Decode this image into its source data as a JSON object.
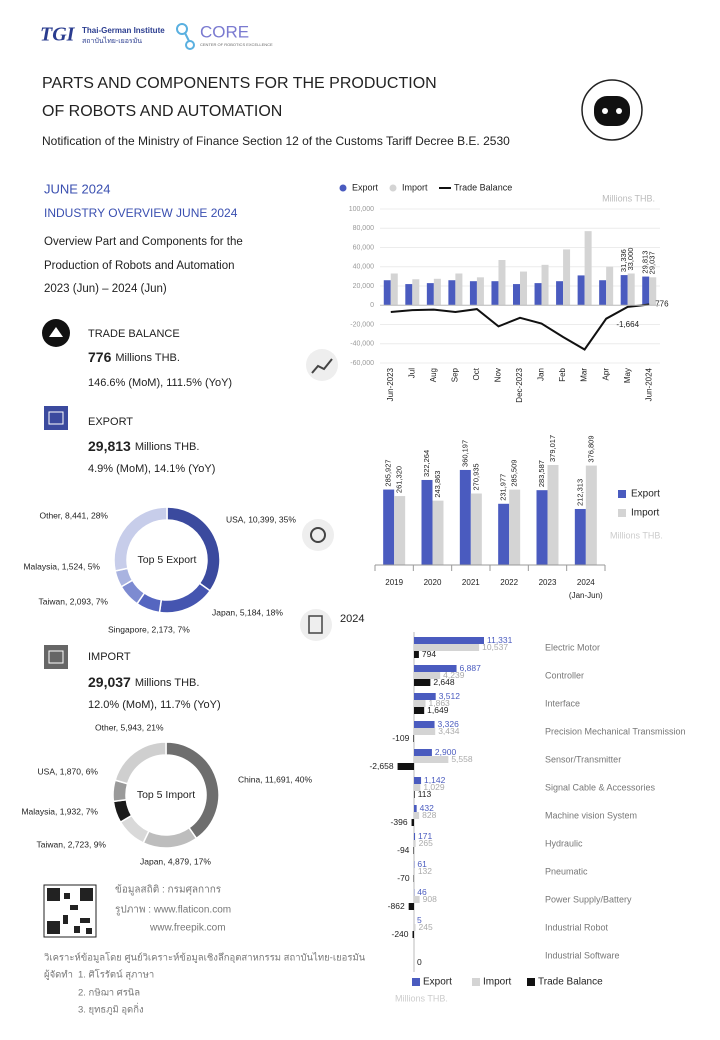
{
  "header": {
    "logo_text": "TGI",
    "org_name": "Thai-German Institute",
    "org_name_th": "สถาบันไทย-เยอรมัน",
    "core_name": "CORE",
    "core_subtitle": "CENTER OF ROBOTICS EXCELLENCE",
    "title_lines": [
      "PARTS AND COMPONENTS FOR THE PRODUCTION",
      "OF ROBOTS AND AUTOMATION"
    ],
    "subtitle": "Notification of the Ministry of Finance Section 12 of the Customs Tariff Decree B.E. 2530"
  },
  "overview": {
    "period": "JUNE 2024",
    "heading": "INDUSTRY OVERVIEW JUNE 2024",
    "description": [
      "Overview Part and Components for the",
      "Production of Robots and Automation",
      "2023 (Jun) – 2024 (Jun)"
    ]
  },
  "kpis": [
    {
      "label": "TRADE BALANCE",
      "value": "776",
      "unit": "Millions THB.",
      "change": "146.6% (MoM), 111.5% (YoY)"
    },
    {
      "label": "EXPORT",
      "value": "29,813",
      "unit": "Millions THB.",
      "change": "4.9% (MoM), 14.1% (YoY)"
    },
    {
      "label": "IMPORT",
      "value": "29,037",
      "unit": "Millions THB.",
      "change": "12.0% (MoM), 11.7% (YoY)"
    }
  ],
  "sources": {
    "lines": [
      "ข้อมูลสถิติ : กรมศุลกากร",
      "รูปภาพ : www.flaticon.com",
      "www.freepik.com"
    ],
    "analysis": "วิเคราะห์ข้อมูลโดย ศูนย์วิเคราะห์ข้อมูลเชิงลึกอุตสาหกรรม สถาบันไทย-เยอรมัน",
    "author_label": "ผู้จัดทำ",
    "authors": [
      "1. ศิโรรัตน์ สุภาษา",
      "2. กษิฌา ศรนิล",
      "3. ยุทธภูมิ อุดกิ่ง"
    ]
  },
  "chart_data": [
    {
      "type": "combo",
      "unit": "Millions THB.",
      "categories": [
        "Jun-2023",
        "Jul",
        "Aug",
        "Sep",
        "Oct",
        "Nov",
        "Dec-2023",
        "Jan",
        "Feb",
        "Mar",
        "Apr",
        "May",
        "Jun-2024"
      ],
      "series": [
        {
          "name": "Export",
          "color": "#4a5bbf",
          "values": [
            26000,
            22000,
            23000,
            26000,
            25000,
            25000,
            22000,
            23000,
            25000,
            31000,
            26000,
            31336,
            29813
          ],
          "value_labels": [
            null,
            null,
            null,
            null,
            null,
            null,
            null,
            null,
            null,
            null,
            null,
            "31,336",
            "29,813"
          ]
        },
        {
          "name": "Import",
          "color": "#d4d4d4",
          "values": [
            33000,
            27000,
            27500,
            33000,
            29000,
            47000,
            35000,
            42000,
            58000,
            77000,
            40000,
            33000,
            29037
          ],
          "value_labels": [
            null,
            null,
            null,
            null,
            null,
            null,
            null,
            null,
            null,
            null,
            null,
            "33,000",
            "29,037"
          ]
        },
        {
          "name": "Trade Balance",
          "type": "line",
          "color": "#111111",
          "values": [
            -7000,
            -5000,
            -4500,
            -7000,
            -4000,
            -22000,
            -13000,
            -19000,
            -33000,
            -46000,
            -14000,
            -1664,
            776
          ],
          "value_labels": [
            null,
            null,
            null,
            null,
            null,
            null,
            null,
            null,
            null,
            null,
            null,
            "-1,664",
            "776"
          ]
        }
      ],
      "ylim": [
        -60000,
        100000
      ],
      "yticks": [
        {
          "value": 100000,
          "label": "100,000"
        },
        {
          "value": 80000,
          "label": "80,000"
        },
        {
          "value": 60000,
          "label": "60,000"
        },
        {
          "value": 40000,
          "label": "40,000"
        },
        {
          "value": 20000,
          "label": "20,000"
        },
        0,
        {
          "value": -20000,
          "label": "-20,000"
        },
        {
          "value": -40000,
          "label": "-40,000"
        },
        {
          "value": -60000,
          "label": "-60,000"
        }
      ],
      "grid": true
    },
    {
      "type": "bar",
      "unit": "Millions THB.",
      "categories": [
        "2019",
        "2020",
        "2021",
        "2022",
        "2023",
        "2024"
      ],
      "category_notes": [
        null,
        null,
        null,
        null,
        null,
        "(Jan-Jun)"
      ],
      "series": [
        {
          "name": "Export",
          "color": "#4a5bbf",
          "values": [
            285927,
            322264,
            360197,
            231977,
            283587,
            212313
          ],
          "value_labels": [
            "285,927",
            "322,264",
            "360,197",
            "231,977",
            "283,587",
            "212,313"
          ]
        },
        {
          "name": "Import",
          "color": "#d4d4d4",
          "values": [
            261320,
            243863,
            270935,
            285509,
            379017,
            376809
          ],
          "value_labels": [
            "261,320",
            "243,863",
            "270,935",
            "285,509",
            "379,017",
            "376,809"
          ]
        }
      ]
    },
    {
      "type": "hbar",
      "title": "2024",
      "unit": "Millions THB.",
      "categories": [
        "Electric Motor",
        "Controller",
        "Interface",
        "Precision Mechanical Transmission",
        "Sensor/Transmitter",
        "Signal Cable & Accessories",
        "Machine vision System",
        "Hydraulic",
        "Pneumatic",
        "Power Supply/Battery",
        "Industrial Robot",
        "Industrial Software"
      ],
      "series": [
        {
          "name": "Export",
          "color": "#4a5bbf",
          "values": [
            11331,
            6887,
            3512,
            3326,
            2900,
            1142,
            432,
            171,
            61,
            46,
            5,
            null
          ],
          "value_labels": [
            "11,331",
            "6,887",
            "3,512",
            "3,326",
            "2,900",
            "1,142",
            "432",
            "171",
            "61",
            "46",
            "5",
            null
          ]
        },
        {
          "name": "Import",
          "color": "#d4d4d4",
          "values": [
            10537,
            4239,
            1863,
            3434,
            5558,
            1029,
            828,
            265,
            132,
            908,
            245,
            null
          ],
          "value_labels": [
            "10,537",
            "4,239",
            "1,863",
            "3,434",
            "5,558",
            "1,029",
            "828",
            "265",
            "132",
            "908",
            "245",
            null
          ]
        },
        {
          "name": "Trade Balance",
          "color": "#111111",
          "values": [
            794,
            2648,
            1649,
            -109,
            -2658,
            113,
            -396,
            -94,
            -70,
            -862,
            -240,
            0
          ],
          "value_labels": [
            "794",
            "2,648",
            "1,649",
            "-109",
            "-2,658",
            "113",
            "-396",
            "-94",
            "-70",
            "-862",
            "-240",
            "0"
          ]
        }
      ]
    },
    {
      "type": "donut",
      "title": "Top 5 Export",
      "values": [
        10399,
        5184,
        2173,
        2093,
        1524,
        8441
      ],
      "value_labels": [
        "USA, 10,399, 35%",
        "Japan, 5,184, 18%",
        "Singapore, 2,173, 7%",
        "Taiwan, 2,093, 7%",
        "Malaysia, 1,524, 5%",
        "Other, 8,441, 28%"
      ],
      "colors": [
        "#3b4a9e",
        "#4555b0",
        "#5566c0",
        "#7d8bd1",
        "#a9b3e0",
        "#c7cdea"
      ]
    },
    {
      "type": "donut",
      "title": "Top 5 Import",
      "values": [
        11691,
        4879,
        2723,
        1932,
        1870,
        5943
      ],
      "value_labels": [
        "China, 11,691, 40%",
        "Japan, 4,879, 17%",
        "Taiwan, 2,723, 9%",
        "Malaysia, 1,932, 7%",
        "USA, 1,870, 6%",
        "Other, 5,943, 21%"
      ],
      "colors": [
        "#6e6e6e",
        "#bdbdbd",
        "#d9d9d9",
        "#1a1a1a",
        "#9a9a9a",
        "#cfcfcf"
      ]
    }
  ]
}
